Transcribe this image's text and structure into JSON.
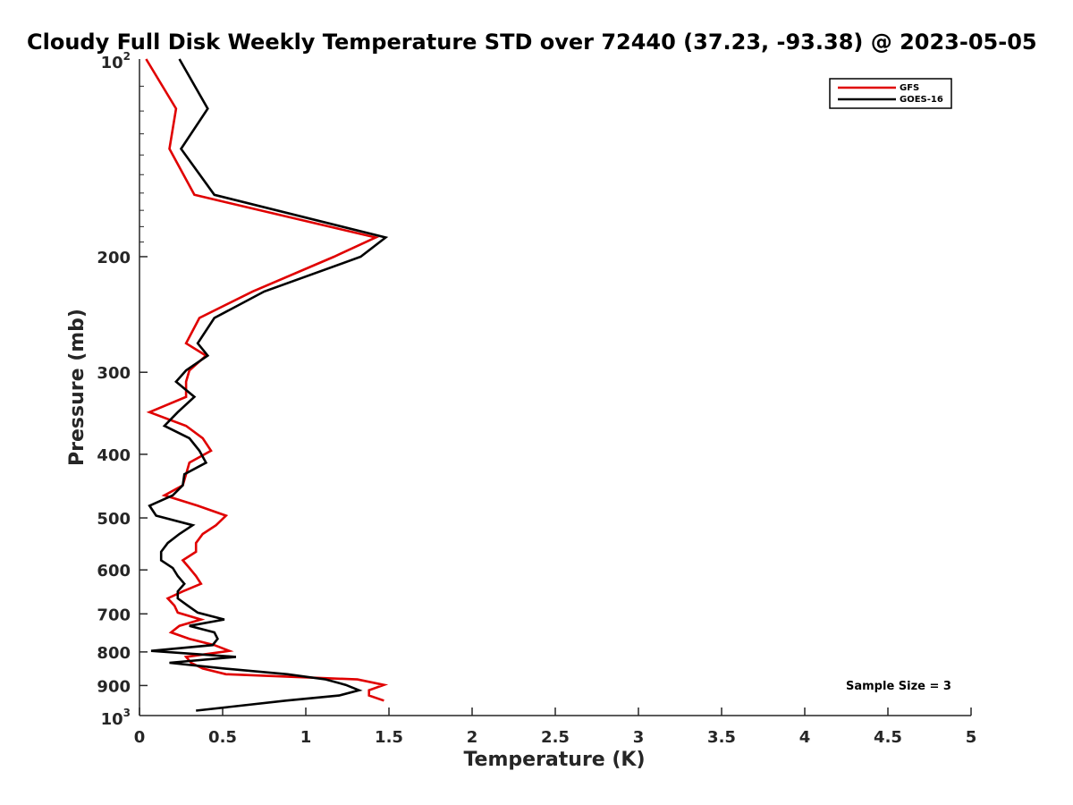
{
  "chart_data": {
    "type": "line",
    "title": "Cloudy Full Disk Weekly Temperature STD over 72440 (37.23, -93.38) @ 2023-05-05",
    "xlabel": "Temperature (K)",
    "ylabel": "Pressure (mb)",
    "xlim": [
      0,
      5
    ],
    "ylim": [
      100,
      1000
    ],
    "y_scale": "log",
    "y_reversed": true,
    "x_ticks": [
      "0",
      "0.5",
      "1",
      "1.5",
      "2",
      "2.5",
      "3",
      "3.5",
      "4",
      "4.5",
      "5"
    ],
    "y_ticks": [
      {
        "value": 200,
        "label": "200"
      },
      {
        "value": 300,
        "label": "300"
      },
      {
        "value": 400,
        "label": "400"
      },
      {
        "value": 500,
        "label": "500"
      },
      {
        "value": 600,
        "label": "600"
      },
      {
        "value": 700,
        "label": "700"
      },
      {
        "value": 800,
        "label": "800"
      },
      {
        "value": 900,
        "label": "900"
      }
    ],
    "y_tick_top": {
      "value": 100,
      "base": "10",
      "exp": "2"
    },
    "y_tick_bottom": {
      "value": 1000,
      "base": "10",
      "exp": "3"
    },
    "legend_position": "top-right",
    "grid": false,
    "annotation": "Sample Size = 3",
    "series": [
      {
        "name": "GFS",
        "color": "#e00000",
        "points": [
          [
            0.04,
            100
          ],
          [
            0.22,
            119
          ],
          [
            0.18,
            137
          ],
          [
            0.33,
            161
          ],
          [
            1.42,
            187
          ],
          [
            1.17,
            200
          ],
          [
            0.68,
            226
          ],
          [
            0.36,
            248
          ],
          [
            0.28,
            271
          ],
          [
            0.4,
            283
          ],
          [
            0.3,
            298
          ],
          [
            0.28,
            310
          ],
          [
            0.28,
            327
          ],
          [
            0.06,
            345
          ],
          [
            0.28,
            362
          ],
          [
            0.38,
            378
          ],
          [
            0.43,
            395
          ],
          [
            0.3,
            412
          ],
          [
            0.28,
            429
          ],
          [
            0.26,
            446
          ],
          [
            0.15,
            462
          ],
          [
            0.35,
            479
          ],
          [
            0.52,
            496
          ],
          [
            0.46,
            513
          ],
          [
            0.38,
            529
          ],
          [
            0.34,
            546
          ],
          [
            0.34,
            563
          ],
          [
            0.26,
            580
          ],
          [
            0.3,
            596
          ],
          [
            0.34,
            613
          ],
          [
            0.37,
            630
          ],
          [
            0.26,
            647
          ],
          [
            0.17,
            663
          ],
          [
            0.21,
            680
          ],
          [
            0.23,
            697
          ],
          [
            0.37,
            714
          ],
          [
            0.24,
            730
          ],
          [
            0.19,
            747
          ],
          [
            0.3,
            764
          ],
          [
            0.45,
            781
          ],
          [
            0.54,
            797
          ],
          [
            0.28,
            814
          ],
          [
            0.31,
            831
          ],
          [
            0.38,
            848
          ],
          [
            0.52,
            865
          ],
          [
            1.31,
            881
          ],
          [
            1.47,
            898
          ],
          [
            1.38,
            915
          ],
          [
            1.38,
            932
          ],
          [
            1.47,
            949
          ]
        ]
      },
      {
        "name": "GOES-16",
        "color": "#000000",
        "points": [
          [
            0.24,
            100
          ],
          [
            0.41,
            119
          ],
          [
            0.25,
            137
          ],
          [
            0.45,
            161
          ],
          [
            1.48,
            187
          ],
          [
            1.33,
            200
          ],
          [
            0.75,
            226
          ],
          [
            0.45,
            248
          ],
          [
            0.35,
            271
          ],
          [
            0.41,
            283
          ],
          [
            0.28,
            298
          ],
          [
            0.22,
            310
          ],
          [
            0.33,
            327
          ],
          [
            0.23,
            345
          ],
          [
            0.15,
            362
          ],
          [
            0.3,
            378
          ],
          [
            0.36,
            395
          ],
          [
            0.4,
            412
          ],
          [
            0.27,
            429
          ],
          [
            0.26,
            446
          ],
          [
            0.2,
            462
          ],
          [
            0.06,
            479
          ],
          [
            0.1,
            496
          ],
          [
            0.32,
            513
          ],
          [
            0.24,
            529
          ],
          [
            0.17,
            546
          ],
          [
            0.13,
            563
          ],
          [
            0.13,
            580
          ],
          [
            0.2,
            596
          ],
          [
            0.23,
            613
          ],
          [
            0.27,
            630
          ],
          [
            0.23,
            647
          ],
          [
            0.23,
            663
          ],
          [
            0.29,
            680
          ],
          [
            0.35,
            697
          ],
          [
            0.51,
            714
          ],
          [
            0.3,
            730
          ],
          [
            0.45,
            747
          ],
          [
            0.47,
            764
          ],
          [
            0.44,
            781
          ],
          [
            0.07,
            797
          ],
          [
            0.58,
            814
          ],
          [
            0.18,
            831
          ],
          [
            0.51,
            848
          ],
          [
            0.89,
            865
          ],
          [
            1.12,
            881
          ],
          [
            1.24,
            898
          ],
          [
            1.32,
            915
          ],
          [
            1.2,
            932
          ],
          [
            0.88,
            949
          ],
          [
            0.34,
            983
          ]
        ]
      }
    ]
  }
}
